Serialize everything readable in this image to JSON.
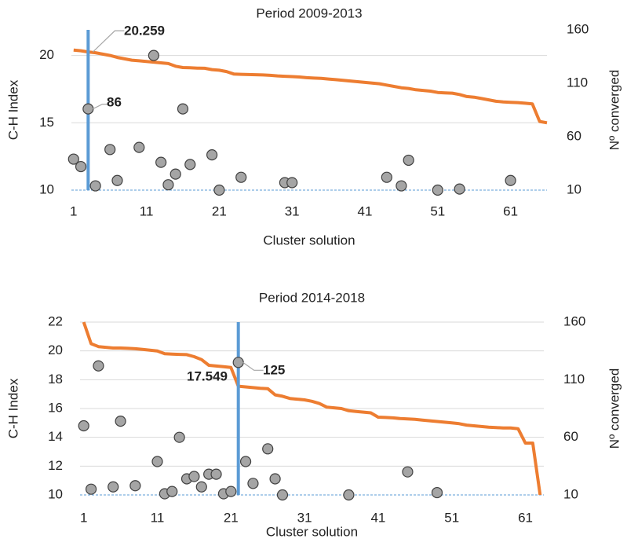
{
  "chart_data": [
    {
      "type": "combo",
      "title": "Period 2009-2013",
      "xlabel": "Cluster solution",
      "ylabel": "C-H Index",
      "y2label": "Nº converged",
      "xlim": [
        0.7,
        66
      ],
      "xticks": [
        1,
        11,
        21,
        31,
        41,
        51,
        61
      ],
      "ylim": [
        10,
        21.9
      ],
      "yticks": [
        10,
        15,
        20
      ],
      "y2lim": [
        10,
        160
      ],
      "y2ticks": [
        10,
        60,
        110,
        160
      ],
      "grid": true,
      "series": [
        {
          "type": "line",
          "color": "#ED7D31",
          "x": [
            1,
            2,
            3,
            4,
            5,
            6,
            7,
            8,
            9,
            10,
            11,
            12,
            13,
            14,
            15,
            16,
            17,
            18,
            19,
            20,
            21,
            22,
            23,
            24,
            25,
            26,
            27,
            28,
            29,
            30,
            31,
            32,
            33,
            34,
            35,
            36,
            37,
            38,
            39,
            40,
            41,
            42,
            43,
            44,
            45,
            46,
            47,
            48,
            49,
            50,
            51,
            52,
            53,
            54,
            55,
            56,
            57,
            58,
            59,
            60,
            61,
            62,
            63,
            64,
            65,
            66
          ],
          "values": [
            20.4,
            20.35,
            20.259,
            20.2,
            20.1,
            20.0,
            19.85,
            19.75,
            19.65,
            19.6,
            19.55,
            19.5,
            19.45,
            19.4,
            19.2,
            19.1,
            19.08,
            19.06,
            19.05,
            18.95,
            18.9,
            18.8,
            18.62,
            18.6,
            18.58,
            18.57,
            18.55,
            18.52,
            18.48,
            18.45,
            18.43,
            18.4,
            18.35,
            18.32,
            18.3,
            18.25,
            18.2,
            18.15,
            18.1,
            18.05,
            18.0,
            17.95,
            17.9,
            17.8,
            17.7,
            17.6,
            17.55,
            17.45,
            17.4,
            17.35,
            17.25,
            17.22,
            17.2,
            17.1,
            16.95,
            16.9,
            16.8,
            16.7,
            16.6,
            16.55,
            16.52,
            16.5,
            16.45,
            16.4,
            15.1,
            15.0
          ]
        },
        {
          "type": "scatter",
          "axis": "y2",
          "color": "#A5A5A5",
          "x": [
            1,
            2,
            3,
            4,
            6,
            7,
            10,
            12,
            13,
            14,
            15,
            16,
            17,
            20,
            21,
            24,
            30,
            31,
            44,
            46,
            47,
            51,
            54,
            61
          ],
          "values": [
            39,
            32,
            86,
            14,
            48,
            19,
            50,
            136,
            36,
            15,
            25,
            86,
            34,
            43,
            10,
            22,
            17,
            17,
            22,
            14,
            38,
            10,
            11,
            19
          ]
        }
      ],
      "marker_x": 3,
      "marker_color": "#5B9BD5",
      "annotations": [
        {
          "x": 3,
          "value": 20.259
        },
        {
          "x": 3,
          "value": 86,
          "axis": "y2"
        }
      ]
    },
    {
      "type": "combo",
      "title": "Period 2014-2018",
      "xlabel": "Cluster solution",
      "ylabel": "C-H Index",
      "y2label": "Nº converged",
      "xlim": [
        0.5,
        63.5
      ],
      "xticks": [
        1,
        11,
        21,
        31,
        41,
        51,
        61
      ],
      "ylim": [
        10,
        22
      ],
      "yticks": [
        10,
        12,
        14,
        16,
        18,
        20,
        22
      ],
      "y2lim": [
        10,
        160
      ],
      "y2ticks": [
        10,
        60,
        110,
        160
      ],
      "grid": true,
      "series": [
        {
          "type": "line",
          "color": "#ED7D31",
          "x": [
            1,
            2,
            3,
            4,
            5,
            6,
            7,
            8,
            9,
            10,
            11,
            12,
            13,
            14,
            15,
            16,
            17,
            18,
            19,
            20,
            21,
            22,
            23,
            24,
            25,
            26,
            27,
            28,
            29,
            30,
            31,
            32,
            33,
            34,
            35,
            36,
            37,
            38,
            39,
            40,
            41,
            42,
            43,
            44,
            45,
            46,
            47,
            48,
            49,
            50,
            51,
            52,
            53,
            54,
            55,
            56,
            57,
            58,
            59,
            60,
            61,
            62,
            63
          ],
          "values": [
            22.0,
            20.5,
            20.3,
            20.25,
            20.2,
            20.2,
            20.18,
            20.15,
            20.1,
            20.05,
            20.0,
            19.8,
            19.78,
            19.76,
            19.74,
            19.6,
            19.4,
            19.0,
            18.95,
            18.9,
            18.85,
            17.549,
            17.5,
            17.45,
            17.4,
            17.38,
            16.95,
            16.85,
            16.7,
            16.65,
            16.6,
            16.5,
            16.35,
            16.1,
            16.05,
            16.0,
            15.85,
            15.8,
            15.75,
            15.7,
            15.4,
            15.38,
            15.35,
            15.3,
            15.28,
            15.25,
            15.2,
            15.15,
            15.1,
            15.05,
            15.0,
            14.95,
            14.85,
            14.8,
            14.75,
            14.7,
            14.68,
            14.65,
            14.65,
            14.6,
            13.6,
            13.6,
            10.0
          ]
        },
        {
          "type": "scatter",
          "axis": "y2",
          "color": "#A5A5A5",
          "x": [
            1,
            2,
            3,
            5,
            6,
            8,
            11,
            12,
            13,
            14,
            15,
            16,
            17,
            18,
            19,
            20,
            21,
            22,
            23,
            24,
            26,
            27,
            28,
            37,
            45,
            49
          ],
          "values": [
            70,
            15,
            122,
            17,
            74,
            18,
            39,
            11,
            13,
            60,
            24,
            26,
            17,
            28,
            28,
            11,
            13,
            125,
            39,
            20,
            50,
            24,
            10,
            10,
            30,
            12
          ]
        }
      ],
      "marker_x": 22,
      "marker_color": "#5B9BD5",
      "annotations": [
        {
          "x": 22,
          "value": 17.549
        },
        {
          "x": 22,
          "value": 125,
          "axis": "y2"
        }
      ]
    }
  ]
}
